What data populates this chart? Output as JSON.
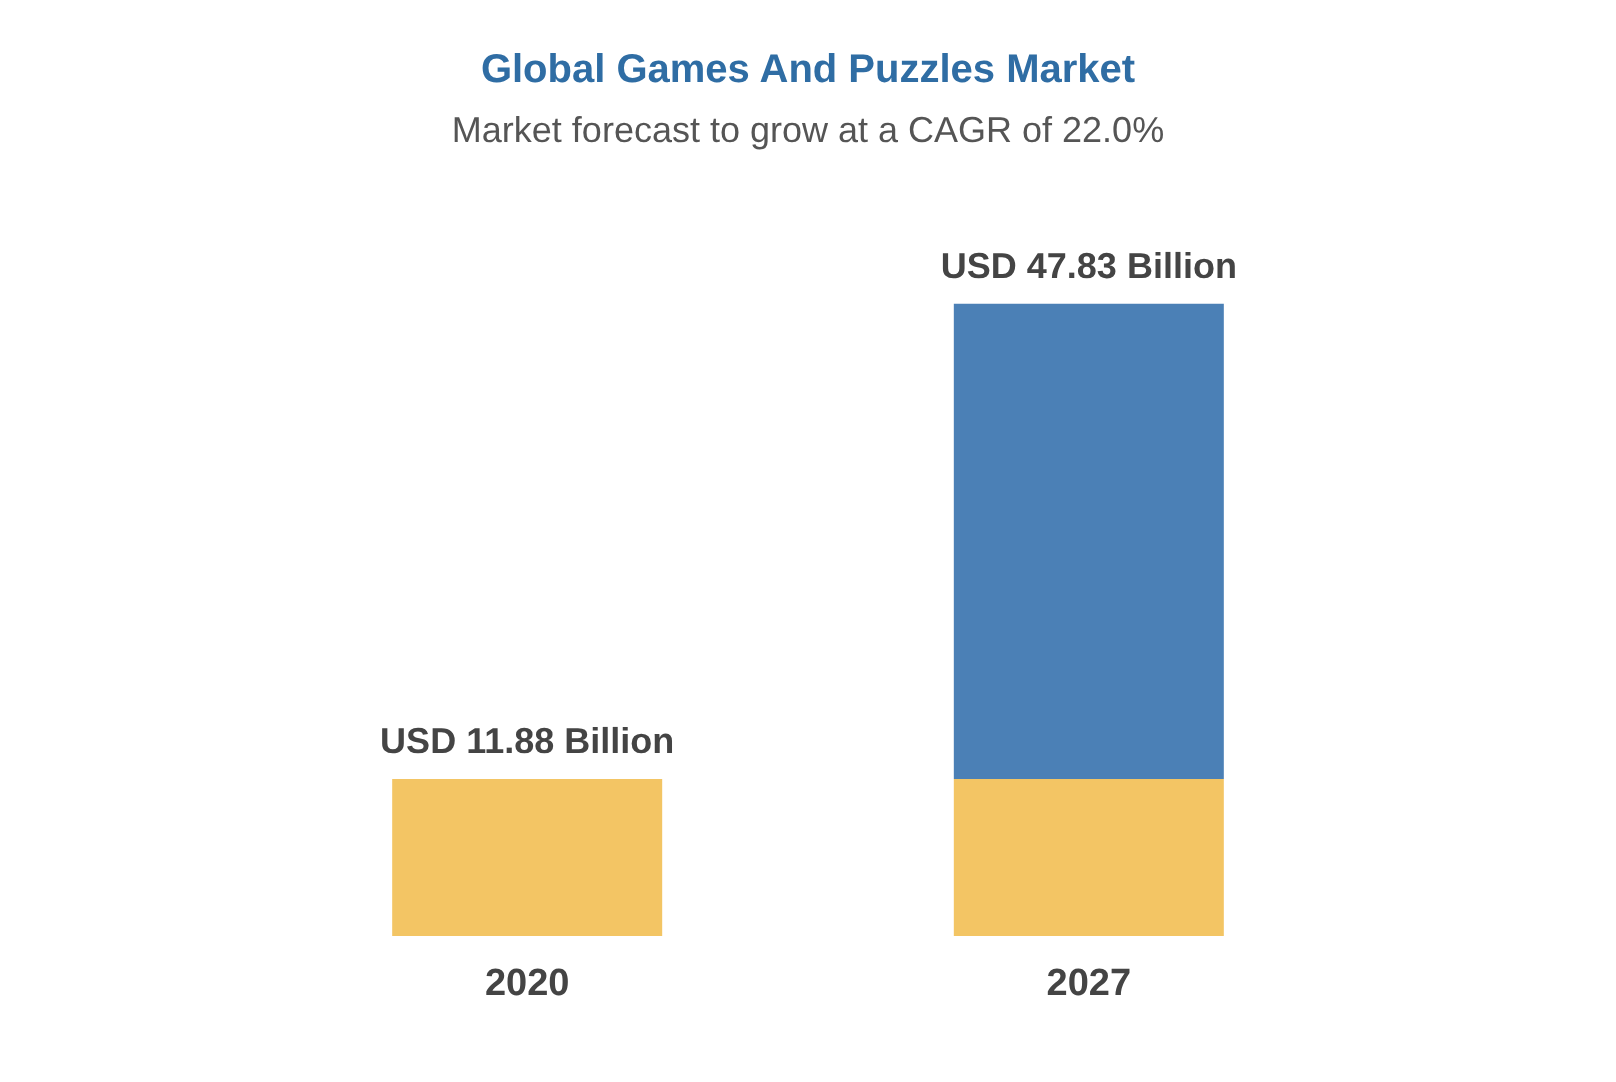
{
  "chart_data": {
    "type": "bar",
    "title": "Global Games And Puzzles Market",
    "subtitle": "Market forecast to grow at a CAGR of 22.0%",
    "categories": [
      "2020",
      "2027"
    ],
    "stacked": true,
    "series": [
      {
        "color": "#f3c564",
        "values": [
          11.88,
          11.88
        ],
        "value_labels": [
          "USD 11.88 Billion",
          null
        ]
      },
      {
        "color": "#4b80b6",
        "values": [
          null,
          35.95
        ]
      }
    ],
    "totals": [
      null,
      "USD 47.83 Billion"
    ]
  }
}
